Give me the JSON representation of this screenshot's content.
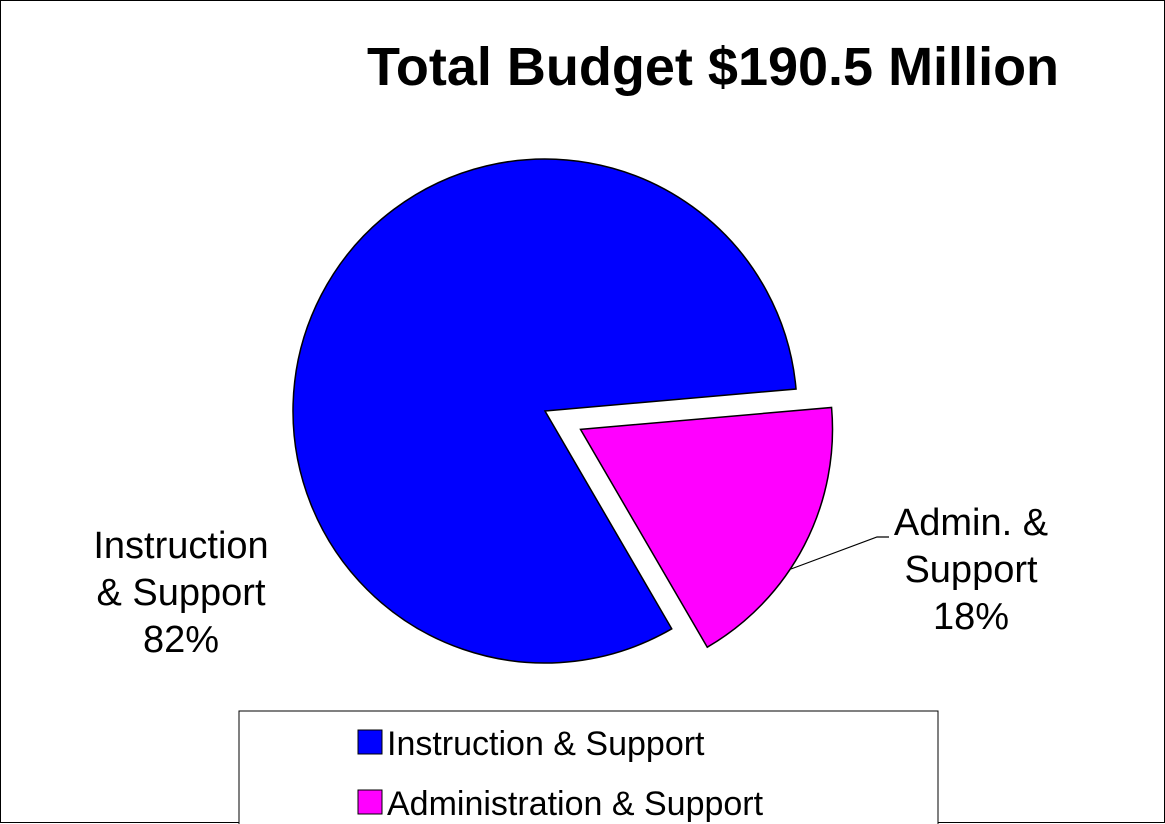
{
  "chart_data": {
    "type": "pie",
    "title": "Total Budget  $190.5 Million",
    "categories": [
      "Instruction & Support",
      "Administration & Support"
    ],
    "values": [
      82,
      18
    ],
    "unit": "%",
    "exploded": [
      false,
      true
    ],
    "slice_labels": [
      {
        "lines": [
          "Instruction",
          "& Support",
          "82%"
        ]
      },
      {
        "lines": [
          "Admin. &",
          "Support",
          "18%"
        ]
      }
    ],
    "legend": {
      "placement": "bottom",
      "entries": [
        "Instruction & Support",
        "Administration & Support"
      ]
    },
    "colors": [
      "#0000FF",
      "#FF00FF"
    ]
  }
}
